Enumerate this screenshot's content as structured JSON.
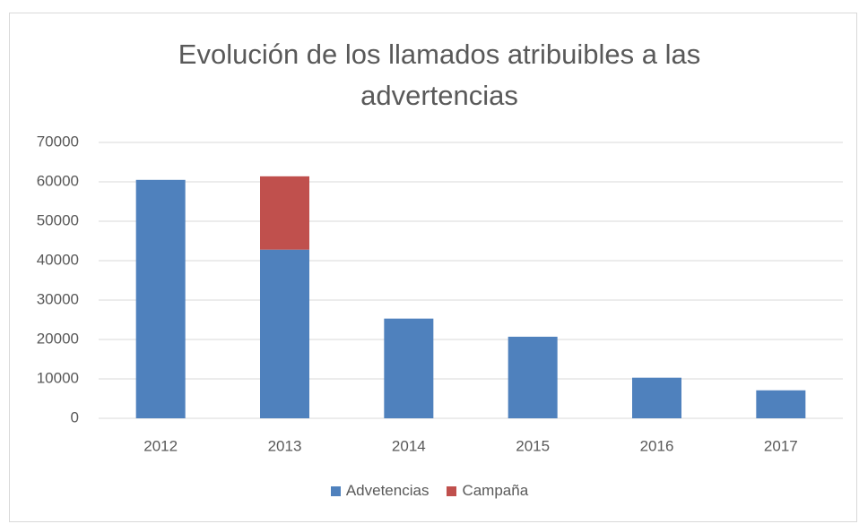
{
  "chart_data": {
    "type": "stacked_bar",
    "title": "Evolución de los llamados atribuibles a las advertencias",
    "categories": [
      "2012",
      "2013",
      "2014",
      "2015",
      "2016",
      "2017"
    ],
    "series": [
      {
        "name": "Advetencias",
        "color": "#4f81bd",
        "values": [
          60500,
          42800,
          25300,
          20700,
          10300,
          7100
        ]
      },
      {
        "name": "Campaña",
        "color": "#c0504d",
        "values": [
          null,
          18600,
          null,
          null,
          null,
          null
        ]
      }
    ],
    "ylim": [
      0,
      70000
    ],
    "yticks": [
      0,
      10000,
      20000,
      30000,
      40000,
      50000,
      60000,
      70000
    ],
    "grid": true,
    "legend": "bottom"
  }
}
